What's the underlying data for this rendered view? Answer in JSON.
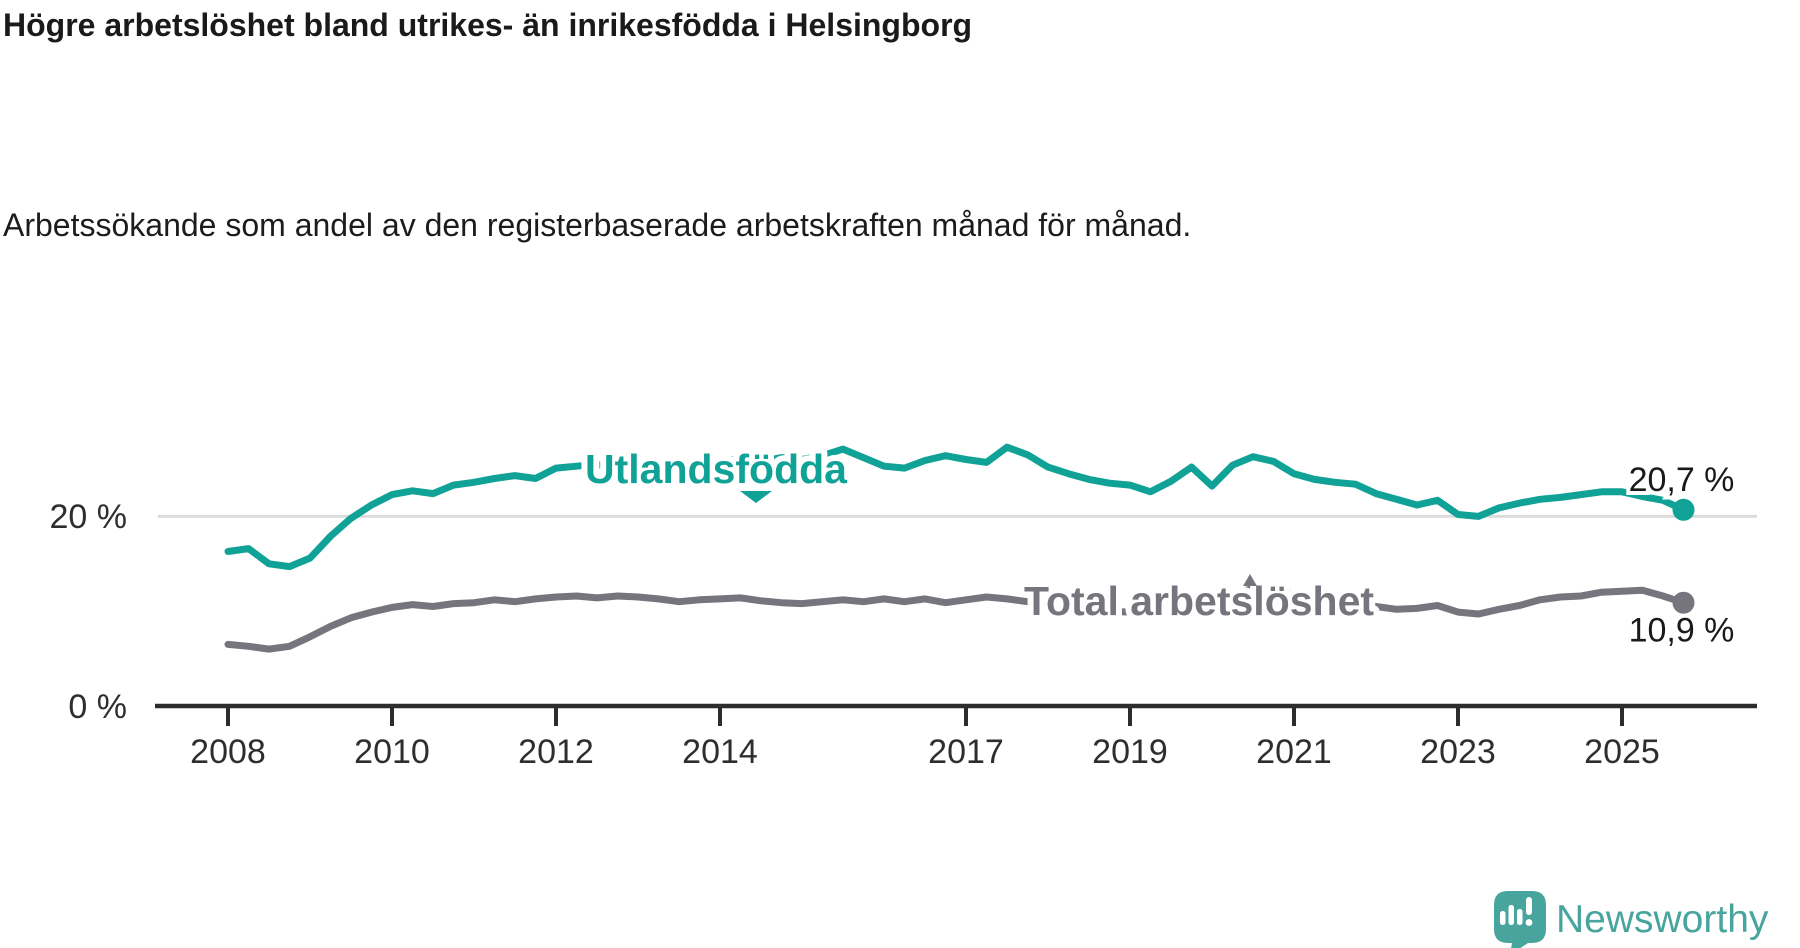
{
  "title": "Högre arbetslöshet bland utrikes- än inrikesfödda i Helsingborg",
  "subtitle": "Arbetssökande som andel av den registerbaserade arbetskraften månad för månad.",
  "branding": {
    "name": "Newsworthy",
    "logo_icon": "chart-bubble-icon",
    "color": "#48a59d"
  },
  "colors": {
    "foreign_born_line": "#10a296",
    "total_line": "#76757d",
    "gridline": "#dcdcdc",
    "axis": "#2d2d2d",
    "background": "#ffffff"
  },
  "chart_data": {
    "type": "line",
    "title": "Högre arbetslöshet bland utrikes- än inrikesfödda i Helsingborg",
    "subtitle": "Arbetssökande som andel av den registerbaserade arbetskraften månad för månad.",
    "unit": "%",
    "grid": "single horizontal gridline at 20 %",
    "legend_position": "inline labels on lines",
    "x_range": [
      2008,
      2025.75
    ],
    "ylim": [
      0,
      38
    ],
    "x_start": 2008,
    "x_step": 0.25,
    "x_ticks": [
      {
        "year": 2008,
        "label": "2008"
      },
      {
        "year": 2010,
        "label": "2010"
      },
      {
        "year": 2012,
        "label": "2012"
      },
      {
        "year": 2014,
        "label": "2014"
      },
      {
        "year": 2017,
        "label": "2017"
      },
      {
        "year": 2019,
        "label": "2019"
      },
      {
        "year": 2021,
        "label": "2021"
      },
      {
        "year": 2023,
        "label": "2023"
      },
      {
        "year": 2025,
        "label": "2025"
      }
    ],
    "y_ticks": [
      {
        "value": 0,
        "label": "0 %"
      },
      {
        "value": 20,
        "label": "20 %"
      }
    ],
    "series": [
      {
        "name": "Utlandsfödda",
        "color": "#10a296",
        "end_label": "20,7 %",
        "end_value": 20.7,
        "values": [
          16.3,
          16.6,
          15.0,
          14.7,
          15.6,
          17.9,
          19.8,
          21.2,
          22.3,
          22.7,
          22.4,
          23.3,
          23.6,
          24.0,
          24.3,
          24.0,
          25.1,
          25.3,
          25.5,
          24.9,
          25.4,
          25.7,
          25.5,
          25.9,
          25.8,
          26.1,
          25.8,
          26.2,
          26.0,
          26.4,
          27.1,
          26.2,
          25.3,
          25.1,
          25.9,
          26.4,
          26.0,
          25.7,
          27.3,
          26.5,
          25.2,
          24.5,
          23.9,
          23.5,
          23.3,
          22.6,
          23.7,
          25.2,
          23.2,
          25.4,
          26.3,
          25.8,
          24.5,
          23.9,
          23.6,
          23.4,
          22.4,
          21.8,
          21.2,
          21.7,
          20.2,
          20.0,
          20.9,
          21.4,
          21.8,
          22.0,
          22.3,
          22.6,
          22.6,
          22.1,
          21.7,
          20.7
        ]
      },
      {
        "name": "Total arbetslöshet",
        "color": "#76757d",
        "end_label": "10,9 %",
        "end_value": 10.9,
        "values": [
          6.5,
          6.3,
          6.0,
          6.3,
          7.3,
          8.4,
          9.3,
          9.9,
          10.4,
          10.7,
          10.5,
          10.8,
          10.9,
          11.2,
          11.0,
          11.3,
          11.5,
          11.6,
          11.4,
          11.6,
          11.5,
          11.3,
          11.0,
          11.2,
          11.3,
          11.4,
          11.1,
          10.9,
          10.8,
          11.0,
          11.2,
          11.0,
          11.3,
          11.0,
          11.3,
          10.9,
          11.2,
          11.5,
          11.3,
          11.0,
          10.6,
          10.3,
          10.1,
          10.0,
          9.9,
          9.8,
          10.2,
          10.5,
          10.3,
          11.8,
          12.4,
          12.1,
          11.8,
          11.4,
          11.0,
          10.8,
          10.5,
          10.2,
          10.3,
          10.6,
          9.9,
          9.7,
          10.2,
          10.6,
          11.2,
          11.5,
          11.6,
          12.0,
          12.1,
          12.2,
          11.6,
          10.9
        ]
      }
    ]
  }
}
